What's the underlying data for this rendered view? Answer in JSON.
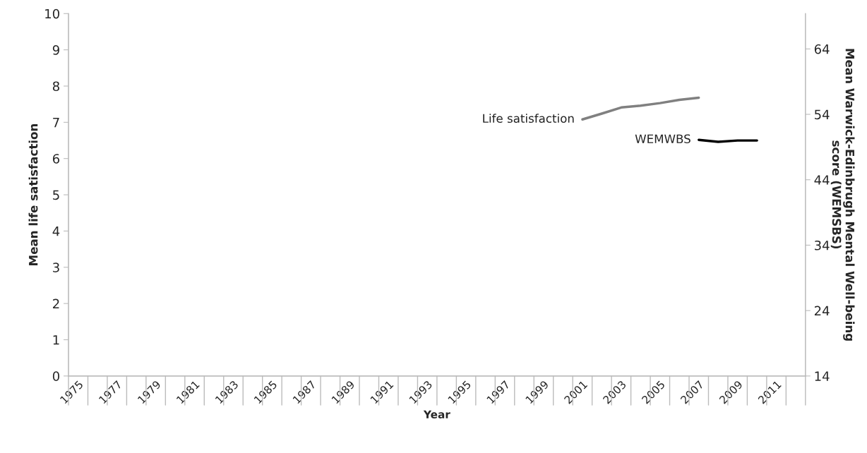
{
  "chart_data": {
    "type": "line",
    "xlabel": "Year",
    "ylabel": "Mean life satisfaction",
    "y2label": "Mean Warwick-Edinbrugh Mental Well-being\nscore (WEMSBS)",
    "categories": [
      "1975",
      null,
      "1977",
      null,
      "1979",
      null,
      "1981",
      null,
      "1983",
      null,
      "1985",
      null,
      "1987",
      null,
      "1989",
      null,
      "1991",
      null,
      "1993",
      null,
      "1995",
      null,
      "1997",
      null,
      "1999",
      null,
      "2001",
      null,
      "2003",
      null,
      "2005",
      null,
      "2007",
      null,
      "2009",
      null,
      "2011",
      null
    ],
    "series": [
      {
        "name": "Life satisfaction",
        "color": "#808080",
        "values": [
          null,
          null,
          null,
          null,
          null,
          null,
          null,
          null,
          null,
          null,
          null,
          null,
          null,
          null,
          null,
          null,
          null,
          null,
          null,
          null,
          null,
          null,
          null,
          null,
          null,
          null,
          7.08,
          7.24,
          7.41,
          7.46,
          7.53,
          7.62,
          7.68,
          null,
          null,
          null,
          null,
          null
        ]
      },
      {
        "name": "WEMWBS",
        "color": "#000000",
        "axis": "y2",
        "values": [
          null,
          null,
          null,
          null,
          null,
          null,
          null,
          null,
          null,
          null,
          null,
          null,
          null,
          null,
          null,
          null,
          null,
          null,
          null,
          null,
          null,
          null,
          null,
          null,
          null,
          null,
          null,
          null,
          null,
          null,
          null,
          null,
          50.1,
          49.8,
          50.0,
          50.0,
          null,
          null
        ]
      }
    ],
    "ylim": [
      0,
      10
    ],
    "yticks": [
      0,
      1,
      2,
      3,
      4,
      5,
      6,
      7,
      8,
      9,
      10
    ],
    "y2lim": [
      14,
      69.4
    ],
    "y2ticks": [
      14,
      24,
      34,
      44,
      54,
      64
    ],
    "grid": false,
    "legend": false
  }
}
